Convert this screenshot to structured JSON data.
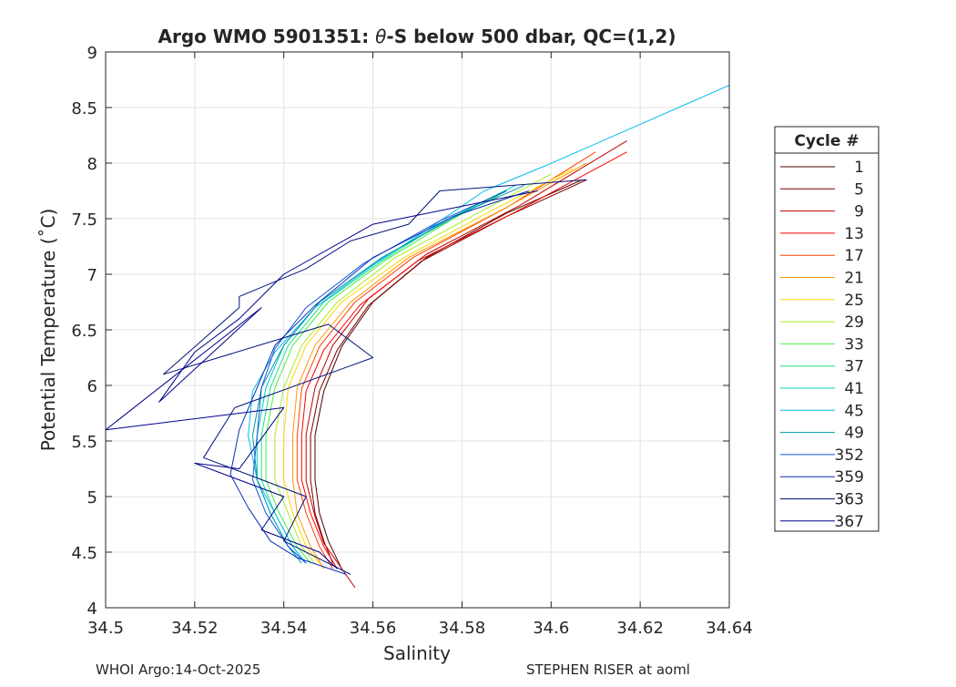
{
  "chart_data": {
    "type": "line",
    "title_prefix": "Argo WMO 5901351: ",
    "title_symbol": "θ",
    "title_suffix": "-S below 500 dbar,  QC=(1,2)",
    "xlabel": "Salinity",
    "ylabel": "Potential Temperature (˚C)",
    "xlim": [
      34.5,
      34.64
    ],
    "ylim": [
      4,
      9
    ],
    "xticks": [
      34.5,
      34.52,
      34.54,
      34.56,
      34.58,
      34.6,
      34.62,
      34.64
    ],
    "xtick_labels": [
      "34.5",
      "34.52",
      "34.54",
      "34.56",
      "34.58",
      "34.6",
      "34.62",
      "34.64"
    ],
    "yticks": [
      4,
      4.5,
      5,
      5.5,
      6,
      6.5,
      7,
      7.5,
      8,
      8.5,
      9
    ],
    "ytick_labels": [
      "4",
      "4.5",
      "5",
      "5.5",
      "6",
      "6.5",
      "7",
      "7.5",
      "8",
      "8.5",
      "9"
    ],
    "grid": true,
    "legend_title": "Cycle #",
    "legend_position": "outside-right",
    "series": [
      {
        "name": "1",
        "color": "#4d0000",
        "salinity": [
          34.607,
          34.59,
          34.572,
          34.56,
          34.553,
          34.549,
          34.547,
          34.547,
          34.548,
          34.55,
          34.553
        ],
        "theta": [
          7.85,
          7.55,
          7.15,
          6.75,
          6.35,
          5.95,
          5.55,
          5.15,
          4.85,
          4.6,
          4.35
        ]
      },
      {
        "name": "5",
        "color": "#800000",
        "salinity": [
          34.608,
          34.59,
          34.571,
          34.559,
          34.552,
          34.548,
          34.546,
          34.546,
          34.547,
          34.549,
          34.551
        ],
        "theta": [
          7.85,
          7.52,
          7.12,
          6.72,
          6.32,
          5.95,
          5.55,
          5.15,
          4.85,
          4.6,
          4.4
        ]
      },
      {
        "name": "9",
        "color": "#bf0000",
        "salinity": [
          34.617,
          34.593,
          34.572,
          34.559,
          34.551,
          34.547,
          34.545,
          34.545,
          34.547,
          34.549,
          34.556
        ],
        "theta": [
          8.2,
          7.62,
          7.18,
          6.78,
          6.36,
          5.98,
          5.56,
          5.14,
          4.82,
          4.58,
          4.18
        ]
      },
      {
        "name": "13",
        "color": "#ff0000",
        "salinity": [
          34.617,
          34.592,
          34.57,
          34.557,
          34.549,
          34.545,
          34.544,
          34.544,
          34.546,
          34.549,
          34.552
        ],
        "theta": [
          8.1,
          7.56,
          7.12,
          6.72,
          6.32,
          5.95,
          5.55,
          5.15,
          4.85,
          4.55,
          4.35
        ]
      },
      {
        "name": "17",
        "color": "#ff4000",
        "salinity": [
          34.61,
          34.59,
          34.569,
          34.556,
          34.548,
          34.544,
          34.543,
          34.543,
          34.545,
          34.548,
          34.551
        ],
        "theta": [
          8.1,
          7.6,
          7.15,
          6.75,
          6.35,
          5.97,
          5.55,
          5.15,
          4.85,
          4.55,
          4.35
        ]
      },
      {
        "name": "21",
        "color": "#ff9900",
        "salinity": [
          34.608,
          34.589,
          34.568,
          34.555,
          34.547,
          34.543,
          34.542,
          34.542,
          34.543,
          34.546,
          34.549
        ],
        "theta": [
          8.0,
          7.58,
          7.15,
          6.75,
          6.36,
          5.98,
          5.55,
          5.15,
          4.85,
          4.55,
          4.35
        ]
      },
      {
        "name": "25",
        "color": "#ffd700",
        "salinity": [
          34.605,
          34.587,
          34.567,
          34.553,
          34.545,
          34.541,
          34.54,
          34.54,
          34.542,
          34.545,
          34.548
        ],
        "theta": [
          7.95,
          7.58,
          7.15,
          6.75,
          6.36,
          5.98,
          5.55,
          5.15,
          4.85,
          4.55,
          4.4
        ]
      },
      {
        "name": "29",
        "color": "#aaee22",
        "salinity": [
          34.6,
          34.584,
          34.565,
          34.552,
          34.544,
          34.54,
          34.538,
          34.538,
          34.541,
          34.544,
          34.547
        ],
        "theta": [
          7.9,
          7.56,
          7.15,
          6.75,
          6.36,
          5.98,
          5.55,
          5.15,
          4.85,
          4.55,
          4.4
        ]
      },
      {
        "name": "33",
        "color": "#44ee44",
        "salinity": [
          34.59,
          34.578,
          34.563,
          34.55,
          34.542,
          34.538,
          34.536,
          34.536,
          34.539,
          34.543,
          34.546
        ],
        "theta": [
          7.75,
          7.5,
          7.13,
          6.75,
          6.36,
          5.98,
          5.55,
          5.15,
          4.85,
          4.55,
          4.4
        ]
      },
      {
        "name": "37",
        "color": "#22dd88",
        "salinity": [
          34.588,
          34.576,
          34.562,
          34.549,
          34.541,
          34.537,
          34.535,
          34.535,
          34.538,
          34.542,
          34.545
        ],
        "theta": [
          7.7,
          7.48,
          7.12,
          6.75,
          6.36,
          5.98,
          5.55,
          5.15,
          4.85,
          4.55,
          4.4
        ]
      },
      {
        "name": "41",
        "color": "#00ccbb",
        "salinity": [
          34.592,
          34.578,
          34.561,
          34.548,
          34.54,
          34.536,
          34.534,
          34.534,
          34.537,
          34.541,
          34.545
        ],
        "theta": [
          7.8,
          7.52,
          7.12,
          6.75,
          6.36,
          5.98,
          5.55,
          5.15,
          4.85,
          4.55,
          4.4
        ]
      },
      {
        "name": "45",
        "color": "#00bbee",
        "salinity": [
          34.64,
          34.599,
          34.585,
          34.574,
          34.56,
          34.547,
          34.538,
          34.533,
          34.532,
          34.534,
          34.538,
          34.542,
          34.545
        ],
        "theta": [
          8.7,
          7.98,
          7.75,
          7.45,
          7.08,
          6.7,
          6.3,
          5.95,
          5.55,
          5.15,
          4.85,
          4.55,
          4.4
        ]
      },
      {
        "name": "49",
        "color": "#0099aa",
        "salinity": [
          34.594,
          34.58,
          34.562,
          34.548,
          34.54,
          34.535,
          34.533,
          34.534,
          34.537,
          34.541,
          34.544
        ],
        "theta": [
          7.8,
          7.55,
          7.15,
          6.75,
          6.36,
          5.98,
          5.55,
          5.15,
          4.85,
          4.55,
          4.4
        ]
      },
      {
        "name": "352",
        "color": "#1155dd",
        "salinity": [
          34.59,
          34.575,
          34.558,
          34.545,
          34.538,
          34.535,
          34.534,
          34.533,
          34.536,
          34.541,
          34.545
        ],
        "theta": [
          7.75,
          7.48,
          7.1,
          6.7,
          6.33,
          5.98,
          5.55,
          5.15,
          4.85,
          4.55,
          4.4
        ]
      },
      {
        "name": "359",
        "color": "#0a2fb8",
        "salinity": [
          34.595,
          34.578,
          34.56,
          34.547,
          34.538,
          34.534,
          34.53,
          34.528,
          34.532,
          34.537,
          34.543,
          34.554
        ],
        "theta": [
          7.75,
          7.52,
          7.15,
          6.72,
          6.36,
          5.98,
          5.6,
          5.2,
          4.9,
          4.6,
          4.45,
          4.3
        ]
      },
      {
        "name": "363",
        "color": "#00137a",
        "salinity": [
          34.608,
          34.575,
          34.568,
          34.555,
          34.545,
          34.53,
          34.53,
          34.513,
          34.55,
          34.56,
          34.529,
          34.522,
          34.545,
          34.54,
          34.555
        ],
        "theta": [
          7.85,
          7.75,
          7.45,
          7.3,
          7.05,
          6.8,
          6.7,
          6.1,
          6.55,
          6.25,
          5.8,
          5.35,
          5.0,
          4.6,
          4.3
        ]
      },
      {
        "name": "367",
        "color": "#00008b",
        "salinity": [
          34.597,
          34.56,
          34.54,
          34.53,
          34.52,
          34.512,
          34.535,
          34.5,
          34.54,
          34.53,
          34.52,
          34.54,
          34.535,
          34.548,
          34.552
        ],
        "theta": [
          7.75,
          7.45,
          7.0,
          6.6,
          6.3,
          5.85,
          6.7,
          5.6,
          5.8,
          5.25,
          5.3,
          5.0,
          4.7,
          4.5,
          4.35
        ]
      }
    ]
  },
  "footer": {
    "left": "WHOI Argo:14-Oct-2025",
    "right": "STEPHEN RISER at aoml"
  }
}
